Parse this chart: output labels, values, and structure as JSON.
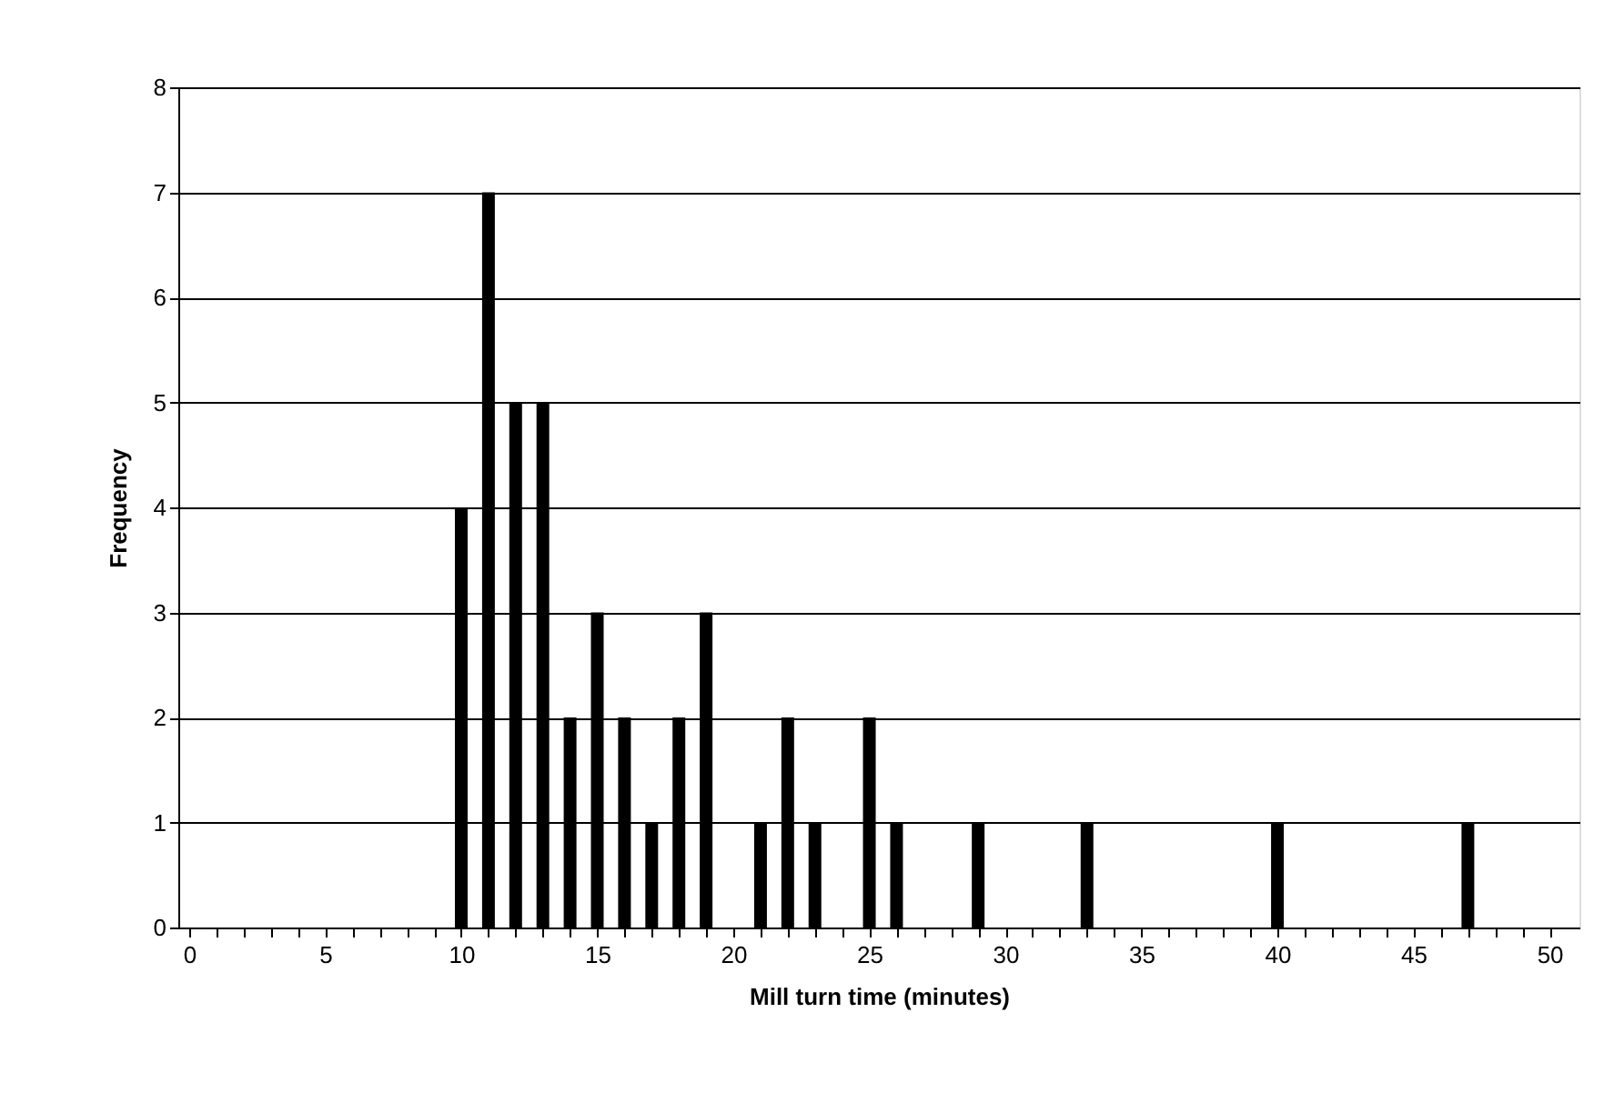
{
  "chart_data": {
    "type": "bar",
    "xlabel": "Mill turn time (minutes)",
    "ylabel": "Frequency",
    "x": [
      10,
      11,
      12,
      13,
      14,
      15,
      16,
      17,
      18,
      19,
      21,
      22,
      23,
      25,
      26,
      29,
      33,
      40,
      47
    ],
    "series": [
      {
        "color": "#000000",
        "values": [
          4,
          7,
          5,
          5,
          2,
          3,
          2,
          1,
          2,
          3,
          1,
          2,
          1,
          2,
          1,
          1,
          1,
          1,
          1
        ]
      }
    ],
    "xlim": [
      -0.4,
      51.1
    ],
    "xticks": [
      0,
      {
        "value": 1,
        "label": null
      },
      {
        "value": 2,
        "label": null
      },
      {
        "value": 3,
        "label": null
      },
      {
        "value": 4,
        "label": null
      },
      5,
      {
        "value": 6,
        "label": null
      },
      {
        "value": 7,
        "label": null
      },
      {
        "value": 8,
        "label": null
      },
      {
        "value": 9,
        "label": null
      },
      10,
      {
        "value": 11,
        "label": null
      },
      {
        "value": 12,
        "label": null
      },
      {
        "value": 13,
        "label": null
      },
      {
        "value": 14,
        "label": null
      },
      15,
      {
        "value": 16,
        "label": null
      },
      {
        "value": 17,
        "label": null
      },
      {
        "value": 18,
        "label": null
      },
      {
        "value": 19,
        "label": null
      },
      20,
      {
        "value": 21,
        "label": null
      },
      {
        "value": 22,
        "label": null
      },
      {
        "value": 23,
        "label": null
      },
      {
        "value": 24,
        "label": null
      },
      25,
      {
        "value": 26,
        "label": null
      },
      {
        "value": 27,
        "label": null
      },
      {
        "value": 28,
        "label": null
      },
      {
        "value": 29,
        "label": null
      },
      30,
      {
        "value": 31,
        "label": null
      },
      {
        "value": 32,
        "label": null
      },
      {
        "value": 33,
        "label": null
      },
      {
        "value": 34,
        "label": null
      },
      35,
      {
        "value": 36,
        "label": null
      },
      {
        "value": 37,
        "label": null
      },
      {
        "value": 38,
        "label": null
      },
      {
        "value": 39,
        "label": null
      },
      40,
      {
        "value": 41,
        "label": null
      },
      {
        "value": 42,
        "label": null
      },
      {
        "value": 43,
        "label": null
      },
      {
        "value": 44,
        "label": null
      },
      45,
      {
        "value": 46,
        "label": null
      },
      {
        "value": 47,
        "label": null
      },
      {
        "value": 48,
        "label": null
      },
      {
        "value": 49,
        "label": null
      },
      50
    ],
    "ylim": [
      0,
      8
    ],
    "yticks": [
      0,
      1,
      2,
      3,
      4,
      5,
      6,
      7,
      8
    ],
    "grid": "y",
    "legend": false
  }
}
